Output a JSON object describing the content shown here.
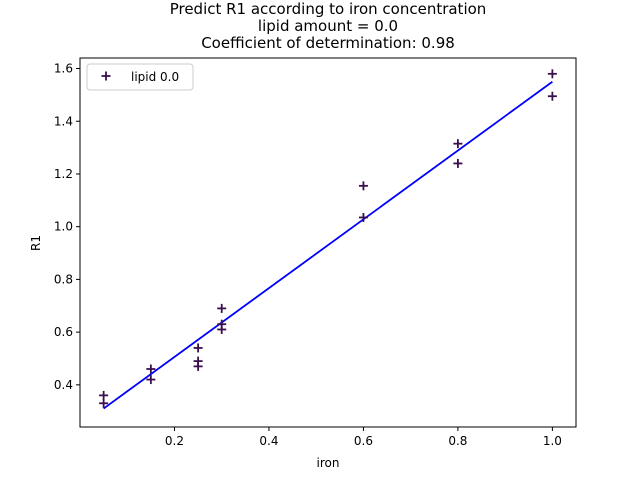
{
  "chart_data": {
    "type": "scatter",
    "title_lines": [
      "Predict R1 according to iron concentration",
      "lipid amount = 0.0",
      "Coefficient of determination: 0.98"
    ],
    "xlabel": "iron",
    "ylabel": "R1",
    "xlim": [
      0.0,
      1.05
    ],
    "ylim": [
      0.24,
      1.64
    ],
    "xticks": [
      0.2,
      0.4,
      0.6,
      0.8,
      1.0
    ],
    "xtick_labels": [
      "0.2",
      "0.4",
      "0.6",
      "0.8",
      "1.0"
    ],
    "yticks": [
      0.4,
      0.6,
      0.8,
      1.0,
      1.2,
      1.4,
      1.6
    ],
    "ytick_labels": [
      "0.4",
      "0.6",
      "0.8",
      "1.0",
      "1.2",
      "1.4",
      "1.6"
    ],
    "grid": false,
    "legend_position": "top-left",
    "series": [
      {
        "name": "lipid 0.0",
        "marker": "plus",
        "color": "#3b0f4e",
        "points": [
          {
            "x": 0.05,
            "y": 0.36
          },
          {
            "x": 0.05,
            "y": 0.33
          },
          {
            "x": 0.15,
            "y": 0.46
          },
          {
            "x": 0.15,
            "y": 0.42
          },
          {
            "x": 0.25,
            "y": 0.54
          },
          {
            "x": 0.25,
            "y": 0.49
          },
          {
            "x": 0.25,
            "y": 0.47
          },
          {
            "x": 0.3,
            "y": 0.69
          },
          {
            "x": 0.3,
            "y": 0.63
          },
          {
            "x": 0.3,
            "y": 0.61
          },
          {
            "x": 0.6,
            "y": 1.155
          },
          {
            "x": 0.6,
            "y": 1.035
          },
          {
            "x": 0.8,
            "y": 1.315
          },
          {
            "x": 0.8,
            "y": 1.24
          },
          {
            "x": 1.0,
            "y": 1.58
          },
          {
            "x": 1.0,
            "y": 1.495
          }
        ]
      }
    ],
    "fit_line": {
      "color": "#0000ff",
      "x": [
        0.05,
        1.0
      ],
      "y": [
        0.31,
        1.55
      ]
    }
  }
}
